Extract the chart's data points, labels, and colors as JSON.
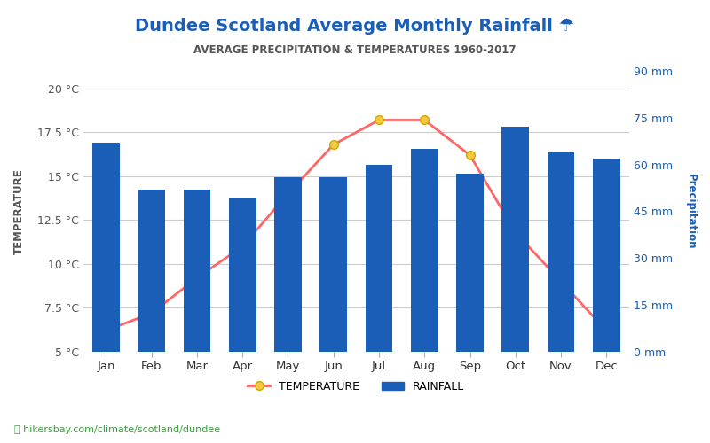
{
  "title": "Dundee Scotland Average Monthly Rainfall ☂",
  "subtitle": "AVERAGE PRECIPITATION & TEMPERATURES 1960-2017",
  "months": [
    "Jan",
    "Feb",
    "Mar",
    "Apr",
    "May",
    "Jun",
    "Jul",
    "Aug",
    "Sep",
    "Oct",
    "Nov",
    "Dec"
  ],
  "rainfall_mm": [
    67,
    52,
    52,
    49,
    56,
    56,
    60,
    65,
    57,
    72,
    64,
    62
  ],
  "temperature_c": [
    6.2,
    7.2,
    9.2,
    11.0,
    14.0,
    16.8,
    18.2,
    18.2,
    16.2,
    11.8,
    9.0,
    6.2
  ],
  "bar_color": "#1a5eb8",
  "line_color": "#ff6666",
  "marker_color": "#f5c842",
  "marker_edge_color": "#ccaa00",
  "left_axis_color": "#555555",
  "right_axis_color": "#1a5eb8",
  "title_color": "#1a5eb8",
  "subtitle_color": "#555555",
  "temp_label_color": "#555555",
  "precip_label_color": "#1a5eb8",
  "left_yticks": [
    5,
    7.5,
    10,
    12.5,
    15,
    17.5,
    20
  ],
  "left_ylim": [
    5,
    21
  ],
  "right_yticks": [
    0,
    15,
    30,
    45,
    60,
    75,
    90
  ],
  "right_ylim": [
    0,
    90
  ],
  "watermark": "hikersbay.com/climate/scotland/dundee",
  "background_color": "#ffffff",
  "grid_color": "#cccccc"
}
